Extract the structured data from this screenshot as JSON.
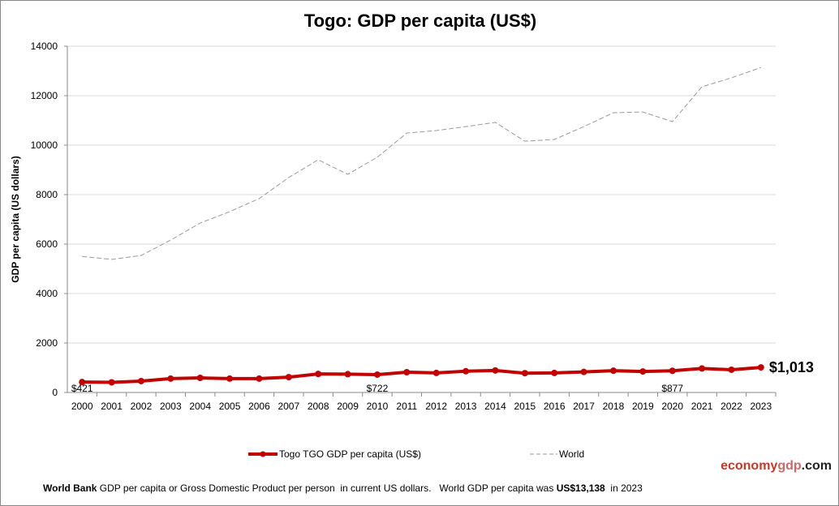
{
  "chart_data": {
    "type": "line",
    "title": "Togo: GDP per capita (US$)",
    "ylabel": "GDP per capita (US dollars)",
    "xlabel": "",
    "ylim": [
      0,
      14000
    ],
    "yticks": [
      "0",
      "2000",
      "4000",
      "6000",
      "8000",
      "10000",
      "12000",
      "14000"
    ],
    "grid": "horizontal",
    "legend_position": "bottom",
    "categories": [
      "2000",
      "2001",
      "2002",
      "2003",
      "2004",
      "2005",
      "2006",
      "2007",
      "2008",
      "2009",
      "2010",
      "2011",
      "2012",
      "2013",
      "2014",
      "2015",
      "2016",
      "2017",
      "2018",
      "2019",
      "2020",
      "2021",
      "2022",
      "2023"
    ],
    "series": [
      {
        "name": "Togo TGO GDP per capita (US$)",
        "color": "#c00000",
        "style": "solid-markers",
        "values": [
          421,
          410,
          460,
          560,
          590,
          560,
          560,
          620,
          750,
          740,
          722,
          820,
          790,
          860,
          890,
          780,
          790,
          830,
          880,
          850,
          877,
          970,
          920,
          1013
        ]
      },
      {
        "name": "World",
        "color": "#999999",
        "style": "dashed",
        "values": [
          5500,
          5380,
          5540,
          6160,
          6850,
          7310,
          7840,
          8690,
          9410,
          8820,
          9510,
          10490,
          10590,
          10750,
          10920,
          10160,
          10230,
          10750,
          11310,
          11340,
          10950,
          12360,
          12720,
          13138
        ]
      }
    ],
    "annotations": [
      {
        "category": "2000",
        "text": "$421"
      },
      {
        "category": "2010",
        "text": "$722"
      },
      {
        "category": "2020",
        "text": "$877"
      },
      {
        "category": "2023",
        "text": "$1,013"
      }
    ]
  },
  "footer": {
    "logo_part1": "economy",
    "logo_part2": "gdp",
    "logo_part3": ".com",
    "note_bold1": "World Bank",
    "note_text1": " GDP per capita or Gross Domestic Product per person  in current US dollars.   World GDP per capita was ",
    "note_bold2": "US$13,138",
    "note_text2": "  in 2023"
  }
}
